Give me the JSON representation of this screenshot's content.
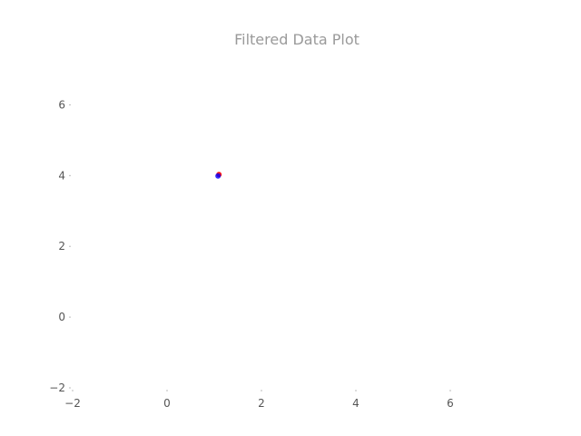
{
  "chart_data": {
    "type": "scatter",
    "title": "Filtered Data Plot",
    "xlabel": "",
    "ylabel": "",
    "xlim": [
      -2,
      8
    ],
    "ylim": [
      -2,
      7.5
    ],
    "x_ticks": [
      -2,
      0,
      2,
      4,
      6
    ],
    "y_ticks": [
      -2,
      0,
      2,
      4,
      6
    ],
    "x_tick_labels": [
      "−2",
      "0",
      "2",
      "4",
      "6"
    ],
    "y_tick_labels": [
      "−2",
      "0",
      "2",
      "4",
      "6"
    ],
    "grid": false,
    "series": [
      {
        "color": "#ff0000",
        "points": [
          {
            "x": 1.1,
            "y": 4.03
          }
        ]
      },
      {
        "color": "#0000ff",
        "points": [
          {
            "x": 1.08,
            "y": 3.99
          }
        ]
      }
    ]
  }
}
